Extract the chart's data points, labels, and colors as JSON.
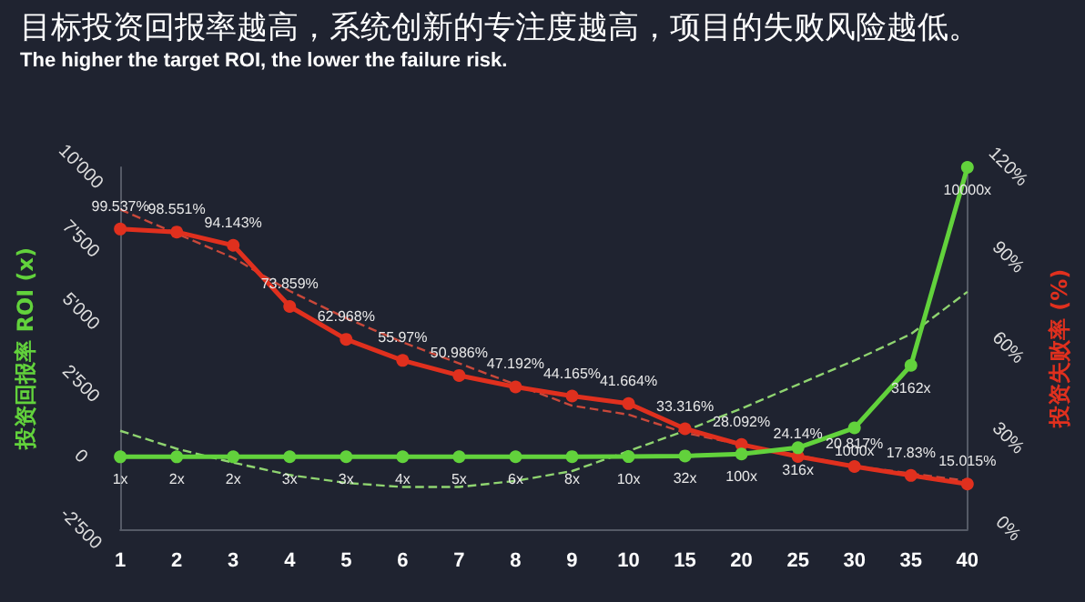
{
  "chart_data": {
    "type": "line",
    "title": "目标投资回报率越高，系统创新的专注度越高，项目的失败风险越低。",
    "subtitle": "The higher the target ROI, the lower the failure risk.",
    "ylabel": "投资回报率 ROI (x)",
    "y2label": "投资失败率 (%)",
    "categories": [
      "1",
      "2",
      "3",
      "4",
      "5",
      "6",
      "7",
      "8",
      "9",
      "10",
      "15",
      "20",
      "25",
      "30",
      "35",
      "40"
    ],
    "series": [
      {
        "color": "#e0301e",
        "axis": "y2",
        "marker": "circle",
        "line_style": "solid",
        "values": [
          99.537,
          98.551,
          94.143,
          73.859,
          62.968,
          55.97,
          50.986,
          47.192,
          44.165,
          41.664,
          33.316,
          28.092,
          24.14,
          20.817,
          17.83,
          15.015
        ],
        "value_labels": [
          "99.537%",
          "98.551%",
          "94.143%",
          "73.859%",
          "62.968%",
          "55.97%",
          "50.986%",
          "47.192%",
          "44.165%",
          "41.664%",
          "33.316%",
          "28.092%",
          "24.14%",
          "20.817%",
          "17.83%",
          "15.015%"
        ]
      },
      {
        "color": "#62d23c",
        "axis": "y",
        "marker": "circle",
        "line_style": "solid",
        "values": [
          1,
          2,
          2,
          3,
          3,
          4,
          5,
          6,
          8,
          10,
          32,
          100,
          316,
          1000,
          3162,
          10000
        ],
        "value_labels": [
          "1x",
          "2x",
          "2x",
          "3x",
          "3x",
          "4x",
          "5x",
          "6x",
          "8x",
          "10x",
          "32x",
          "100x",
          "316x",
          "1000x",
          "3162x",
          "10000x"
        ]
      },
      {
        "color": "#c9483a",
        "axis": "y2",
        "marker": "none",
        "line_style": "dashed",
        "values": [
          106,
          98,
          90,
          79,
          70,
          62,
          55,
          48,
          41,
          38,
          32,
          28,
          24.5,
          21,
          18.5,
          16
        ]
      },
      {
        "color": "#8fd470",
        "axis": "y",
        "marker": "none",
        "line_style": "dashed",
        "values": [
          900,
          280,
          -200,
          -625,
          -900,
          -1040,
          -1040,
          -830,
          -490,
          200,
          900,
          1670,
          2500,
          3330,
          4240,
          5700
        ]
      }
    ],
    "ylim": [
      -2500,
      10000
    ],
    "yticks": [
      {
        "value": -2500,
        "label": "-2'500"
      },
      0,
      {
        "value": 2500,
        "label": "2'500"
      },
      {
        "value": 5000,
        "label": "5'000"
      },
      {
        "value": 7500,
        "label": "7'500"
      },
      {
        "value": 10000,
        "label": "10'000"
      }
    ],
    "y2lim": [
      0,
      120
    ],
    "y2ticks": [
      {
        "value": 0,
        "label": "0%"
      },
      {
        "value": 30,
        "label": "30%"
      },
      {
        "value": 60,
        "label": "60%"
      },
      {
        "value": 90,
        "label": "90%"
      },
      {
        "value": 120,
        "label": "120%"
      }
    ],
    "grid": false
  }
}
